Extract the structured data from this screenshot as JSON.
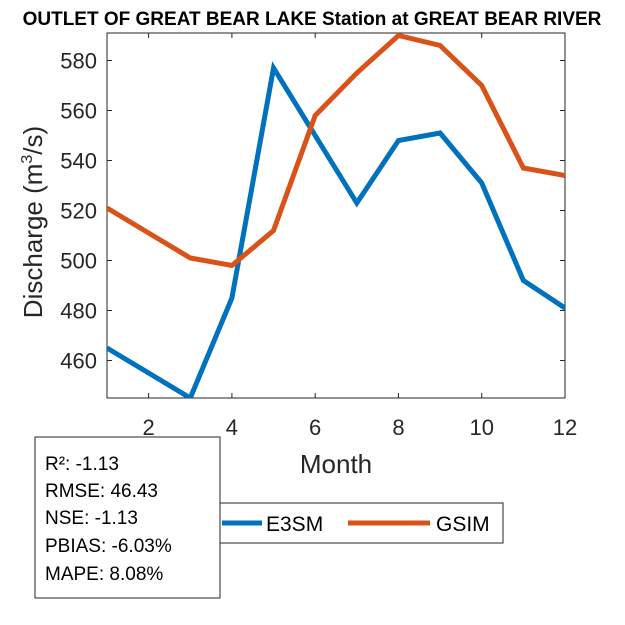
{
  "chart_data": {
    "type": "line",
    "title": "OUTLET OF GREAT BEAR LAKE  Station at  GREAT BEAR RIVER",
    "xlabel": "Month",
    "ylabel_prefix": "Discharge (m",
    "ylabel_sup": "3",
    "ylabel_suffix": "/s)",
    "xlim": [
      1,
      12
    ],
    "ylim": [
      445,
      591
    ],
    "xticks": [
      2,
      4,
      6,
      8,
      10,
      12
    ],
    "yticks": [
      460,
      480,
      500,
      520,
      540,
      560,
      580
    ],
    "x": [
      1,
      2,
      3,
      4,
      5,
      6,
      7,
      8,
      9,
      10,
      11,
      12
    ],
    "series": [
      {
        "name": "E3SM",
        "color": "#0072BD",
        "values": [
          465,
          455,
          445,
          485,
          577,
          550,
          523,
          548,
          551,
          531,
          492,
          481
        ]
      },
      {
        "name": "GSIM",
        "color": "#D95319",
        "values": [
          521,
          511,
          501,
          498,
          512,
          558,
          575,
          590,
          586,
          570,
          537,
          534
        ]
      }
    ],
    "legend_location": "bottom-center",
    "stats": [
      {
        "label": "R²: ",
        "value": "-1.13"
      },
      {
        "label": "RMSE: ",
        "value": "46.43"
      },
      {
        "label": "NSE: ",
        "value": "-1.13"
      },
      {
        "label": "PBIAS: ",
        "value": "-6.03%"
      },
      {
        "label": "MAPE: ",
        "value": "8.08%"
      }
    ]
  }
}
